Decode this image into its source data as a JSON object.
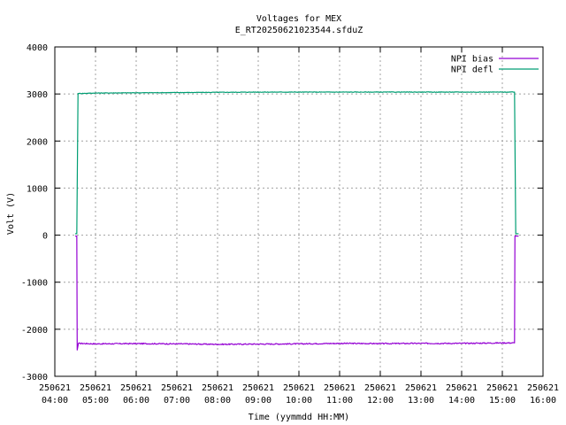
{
  "chart_data": {
    "type": "line",
    "title": "Voltages for MEX",
    "subtitle": "E_RT20250621023544.sfduZ",
    "xlabel": "Time (yymmdd HH:MM)",
    "ylabel": "Volt (V)",
    "ylim": [
      -3000,
      4000
    ],
    "yticks": [
      -3000,
      -2000,
      -1000,
      0,
      1000,
      2000,
      3000,
      4000
    ],
    "ytick_labels": [
      "-3000",
      "-2000",
      "-1000",
      "0",
      "1000",
      "2000",
      "3000",
      "4000"
    ],
    "xlim_hours": [
      4,
      16
    ],
    "xticks": [
      {
        "hour": 4,
        "date": "250621",
        "time": "04:00"
      },
      {
        "hour": 5,
        "date": "250621",
        "time": "05:00"
      },
      {
        "hour": 6,
        "date": "250621",
        "time": "06:00"
      },
      {
        "hour": 7,
        "date": "250621",
        "time": "07:00"
      },
      {
        "hour": 8,
        "date": "250621",
        "time": "08:00"
      },
      {
        "hour": 9,
        "date": "250621",
        "time": "09:00"
      },
      {
        "hour": 10,
        "date": "250621",
        "time": "10:00"
      },
      {
        "hour": 11,
        "date": "250621",
        "time": "11:00"
      },
      {
        "hour": 12,
        "date": "250621",
        "time": "12:00"
      },
      {
        "hour": 13,
        "date": "250621",
        "time": "13:00"
      },
      {
        "hour": 14,
        "date": "250621",
        "time": "14:00"
      },
      {
        "hour": 15,
        "date": "250621",
        "time": "15:00"
      },
      {
        "hour": 16,
        "date": "250621",
        "time": "16:00"
      }
    ],
    "grid": true,
    "legend_position": "top-right",
    "series": [
      {
        "name": "NPI bias",
        "color": "#9400d3",
        "points": [
          [
            4.5,
            -20
          ],
          [
            4.54,
            -20
          ],
          [
            4.55,
            -2440
          ],
          [
            4.58,
            -2300
          ],
          [
            5.0,
            -2310
          ],
          [
            6.0,
            -2305
          ],
          [
            7.0,
            -2310
          ],
          [
            8.0,
            -2320
          ],
          [
            9.0,
            -2315
          ],
          [
            10.0,
            -2310
          ],
          [
            11.0,
            -2300
          ],
          [
            12.0,
            -2305
          ],
          [
            13.0,
            -2300
          ],
          [
            14.0,
            -2300
          ],
          [
            15.0,
            -2290
          ],
          [
            15.3,
            -2290
          ],
          [
            15.31,
            -20
          ],
          [
            15.4,
            -20
          ]
        ]
      },
      {
        "name": "NPI defl",
        "color": "#009e73",
        "points": [
          [
            4.5,
            30
          ],
          [
            4.54,
            30
          ],
          [
            4.57,
            3010
          ],
          [
            5.0,
            3020
          ],
          [
            6.0,
            3025
          ],
          [
            7.0,
            3030
          ],
          [
            8.0,
            3035
          ],
          [
            9.0,
            3040
          ],
          [
            10.0,
            3040
          ],
          [
            11.0,
            3040
          ],
          [
            12.0,
            3040
          ],
          [
            13.0,
            3040
          ],
          [
            14.0,
            3040
          ],
          [
            15.0,
            3040
          ],
          [
            15.3,
            3040
          ],
          [
            15.33,
            30
          ],
          [
            15.4,
            30
          ]
        ]
      }
    ]
  }
}
